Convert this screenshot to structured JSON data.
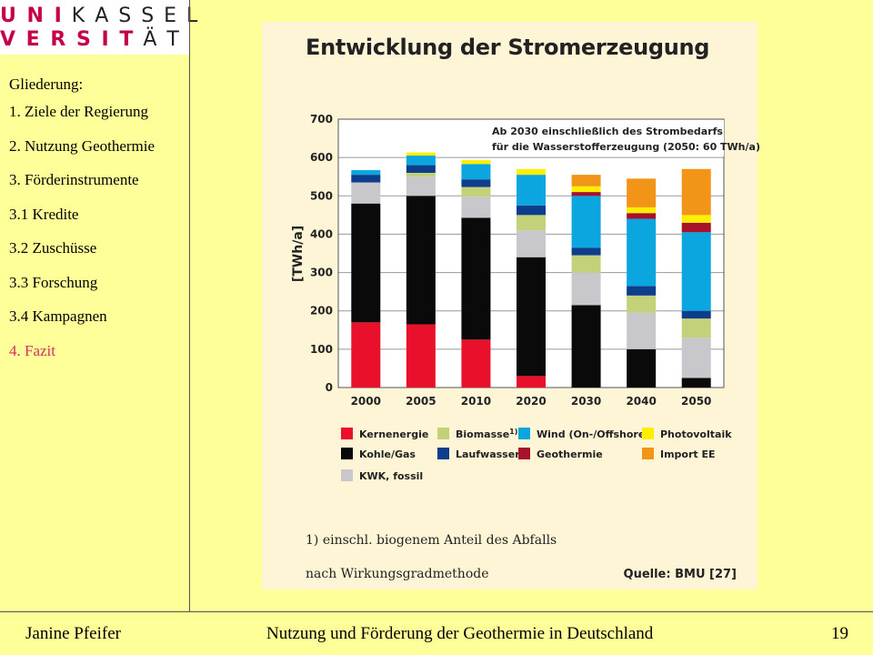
{
  "logo": {
    "line1": "U N I K A S S E L",
    "line2": "V E R S I T Ä T",
    "line1_accent": "U N I",
    "line1_rest": " K A S S E L",
    "line2_accent": "V E R S I T",
    "line2_rest": " Ä T",
    "accent_color": "#C4004B"
  },
  "nav": {
    "heading": "Gliederung:",
    "items": [
      {
        "label": "1. Ziele der Regierung"
      },
      {
        "label": "2. Nutzung Geothermie"
      },
      {
        "label": "3. Förderinstrumente"
      },
      {
        "label": "3.1 Kredite"
      },
      {
        "label": "3.2 Zuschüsse"
      },
      {
        "label": "3.3 Forschung"
      },
      {
        "label": "3.4 Kampagnen"
      },
      {
        "label": "4. Fazit",
        "active": true
      }
    ]
  },
  "chart_data": {
    "type": "bar",
    "stacked": true,
    "title": "Entwicklung der Stromerzeugung",
    "ylabel": "[TWh/a]",
    "ylim": [
      0,
      700
    ],
    "yticks": [
      0,
      100,
      200,
      300,
      400,
      500,
      600,
      700
    ],
    "categories": [
      "2000",
      "2005",
      "2010",
      "2020",
      "2030",
      "2040",
      "2050"
    ],
    "grid": true,
    "annotation": "Ab 2030 einschließlich des Strombedarfs für die Wasserstofferzeugung (2050: 60 TWh/a)",
    "series": [
      {
        "name": "Kernenergie",
        "color": "#E8102A",
        "values": [
          170,
          165,
          125,
          30,
          0,
          0,
          0
        ]
      },
      {
        "name": "Kohle/Gas",
        "color": "#0A0A0A",
        "values": [
          310,
          335,
          318,
          310,
          215,
          100,
          25
        ]
      },
      {
        "name": "KWK, fossil",
        "color": "#C8C8CC",
        "values": [
          55,
          50,
          55,
          70,
          85,
          95,
          105
        ]
      },
      {
        "name": "Biomasse",
        "superscript": "1)",
        "color": "#C3D27A",
        "values": [
          0,
          10,
          25,
          40,
          45,
          45,
          50
        ]
      },
      {
        "name": "Laufwasser",
        "color": "#0E3D8C",
        "values": [
          20,
          20,
          20,
          25,
          20,
          25,
          20
        ]
      },
      {
        "name": "Wind (On-/Offshore)",
        "color": "#0BA6E0",
        "values": [
          12,
          25,
          40,
          80,
          135,
          175,
          205
        ]
      },
      {
        "name": "Geothermie",
        "color": "#A5122A",
        "values": [
          0,
          0,
          0,
          0,
          10,
          15,
          25
        ]
      },
      {
        "name": "Photovoltaik",
        "color": "#FFEE00",
        "values": [
          0,
          8,
          10,
          15,
          15,
          15,
          20
        ]
      },
      {
        "name": "Import EE",
        "color": "#F29418",
        "values": [
          0,
          0,
          0,
          0,
          30,
          75,
          120
        ]
      }
    ],
    "footnote": "1) einschl. biogenem Anteil des Abfalls",
    "method_note": "nach Wirkungsgradmethode",
    "source": "Quelle: BMU [27]"
  },
  "footer": {
    "author": "Janine Pfeifer",
    "title": "Nutzung und Förderung der Geothermie in Deutschland",
    "page": "19"
  }
}
